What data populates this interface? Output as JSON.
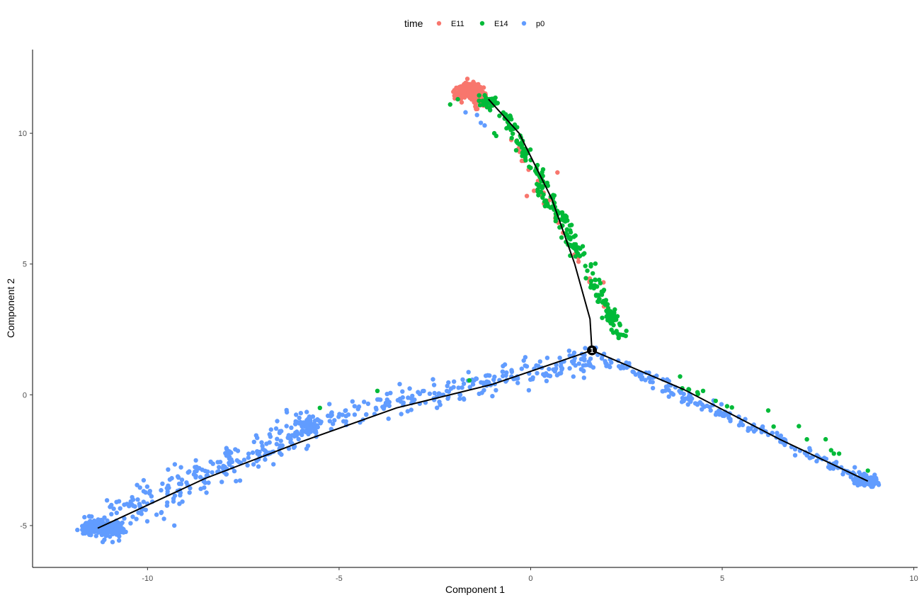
{
  "chart_data": {
    "type": "scatter",
    "title": "",
    "xlabel": "Component 1",
    "ylabel": "Component 2",
    "xlim": [
      -13.0,
      10.1
    ],
    "ylim": [
      -6.6,
      13.2
    ],
    "xticks": [
      -10,
      -5,
      0,
      5,
      10
    ],
    "yticks": [
      -5,
      0,
      5,
      10
    ],
    "xtick_labels": [
      "-10",
      "-5",
      "0",
      "5",
      "10"
    ],
    "ytick_labels": [
      "-5",
      "0",
      "5",
      "10"
    ],
    "grid": false,
    "legend": {
      "title": "time",
      "position": "top",
      "entries": [
        {
          "label": "E11",
          "color": "#F8766D"
        },
        {
          "label": "E14",
          "color": "#00BA38"
        },
        {
          "label": "p0",
          "color": "#619CFF"
        }
      ]
    },
    "trajectory": {
      "color": "#000000",
      "branch_point": {
        "x": 1.6,
        "y": 1.7,
        "label": "1"
      },
      "branches": [
        [
          [
            1.6,
            1.7
          ],
          [
            1.55,
            2.9
          ],
          [
            1.15,
            5.0
          ],
          [
            0.55,
            7.5
          ],
          [
            -0.3,
            10.0
          ],
          [
            -1.1,
            11.3
          ]
        ],
        [
          [
            1.6,
            1.7
          ],
          [
            -1.0,
            0.4
          ],
          [
            -3.5,
            -0.5
          ],
          [
            -6.0,
            -1.8
          ],
          [
            -8.5,
            -3.2
          ],
          [
            -11.3,
            -5.1
          ]
        ],
        [
          [
            1.6,
            1.7
          ],
          [
            4.0,
            0.2
          ],
          [
            6.5,
            -1.7
          ],
          [
            8.8,
            -3.3
          ]
        ]
      ]
    },
    "series": [
      {
        "name": "E11",
        "color": "#F8766D",
        "clusters": [
          {
            "cx": -1.6,
            "cy": 11.6,
            "sx": 0.35,
            "sy": 0.35,
            "n": 160
          },
          {
            "cx": -1.3,
            "cy": 11.2,
            "sx": 0.2,
            "sy": 0.25,
            "n": 40
          }
        ],
        "bands": [
          {
            "x0": -0.5,
            "y0": 9.8,
            "x1": 2.0,
            "y1": 3.2,
            "width": 0.25,
            "n": 28
          }
        ],
        "points": [
          [
            0.7,
            8.5
          ],
          [
            -0.1,
            7.6
          ],
          [
            1.9,
            4.3
          ]
        ]
      },
      {
        "name": "E14",
        "color": "#00BA38",
        "clusters": [
          {
            "cx": -1.1,
            "cy": 11.2,
            "sx": 0.25,
            "sy": 0.25,
            "n": 40
          },
          {
            "cx": 2.1,
            "cy": 3.0,
            "sx": 0.12,
            "sy": 0.25,
            "n": 40
          }
        ],
        "bands": [
          {
            "x0": -0.7,
            "y0": 10.8,
            "x1": 2.4,
            "y1": 2.2,
            "width": 0.4,
            "n": 230
          },
          {
            "x0": 3.5,
            "y0": 0.6,
            "x1": 8.1,
            "y1": -2.3,
            "width": 0.15,
            "n": 12
          }
        ],
        "points": [
          [
            -1.9,
            11.3
          ],
          [
            -2.1,
            11.1
          ],
          [
            -0.9,
            9.9
          ],
          [
            -0.95,
            10.0
          ],
          [
            -5.5,
            -0.5
          ],
          [
            -4.0,
            0.15
          ],
          [
            -1.6,
            0.55
          ],
          [
            4.5,
            0.15
          ],
          [
            6.2,
            -0.6
          ],
          [
            7.0,
            -1.2
          ],
          [
            7.7,
            -1.7
          ],
          [
            8.8,
            -2.9
          ],
          [
            8.05,
            -2.25
          ],
          [
            3.9,
            0.7
          ]
        ]
      },
      {
        "name": "p0",
        "color": "#619CFF",
        "clusters": [
          {
            "cx": -11.2,
            "cy": -5.1,
            "sx": 0.5,
            "sy": 0.25,
            "n": 170
          },
          {
            "cx": -5.8,
            "cy": -1.2,
            "sx": 0.25,
            "sy": 0.3,
            "n": 60
          },
          {
            "cx": 8.8,
            "cy": -3.3,
            "sx": 0.25,
            "sy": 0.18,
            "n": 110
          }
        ],
        "bands": [
          {
            "x0": -11.5,
            "y0": -5.2,
            "x1": -5.8,
            "y1": -1.1,
            "width": 1.3,
            "n": 260
          },
          {
            "x0": -5.8,
            "y0": -1.1,
            "x1": 1.6,
            "y1": 1.4,
            "width": 1.0,
            "n": 230
          },
          {
            "x0": 1.7,
            "y0": 1.5,
            "x1": 9.0,
            "y1": -3.4,
            "width": 0.45,
            "n": 200
          }
        ],
        "points": [
          [
            -1.4,
            10.7
          ],
          [
            -1.7,
            10.8
          ],
          [
            -1.2,
            10.3
          ],
          [
            -1.3,
            10.4
          ],
          [
            1.7,
            1.8
          ],
          [
            1.1,
            1.5
          ],
          [
            -9.3,
            -5.0
          ],
          [
            -6.0,
            -0.7
          ]
        ]
      }
    ]
  }
}
